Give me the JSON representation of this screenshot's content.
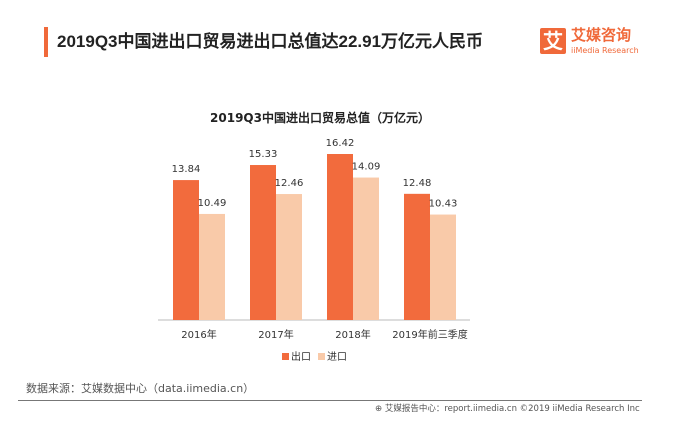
{
  "header": {
    "title": "2019Q3中国进出口贸易进出口总值达22.91万亿元人民币",
    "logo_mark": "艾",
    "logo_cn": "艾媒咨询",
    "logo_en": "iiMedia Research"
  },
  "chart_data": {
    "type": "bar",
    "title": "2019Q3中国进出口贸易总值（万亿元）",
    "categories": [
      "2016年",
      "2017年",
      "2018年",
      "2019年前三季度"
    ],
    "series": [
      {
        "name": "出口",
        "values": [
          13.84,
          15.33,
          16.42,
          12.48
        ],
        "color": "#f26b3d"
      },
      {
        "name": "进口",
        "values": [
          10.49,
          12.46,
          14.09,
          10.43
        ],
        "color": "#f9caa9"
      }
    ],
    "ylim": [
      0,
      16.42
    ],
    "grid": false,
    "legend": "bottom",
    "data_labels": true
  },
  "footer": {
    "source": "数据来源：艾媒数据中心（data.iimedia.cn）",
    "credit": "艾媒报告中心：report.iimedia.cn  ©2019  iiMedia Research  Inc"
  }
}
